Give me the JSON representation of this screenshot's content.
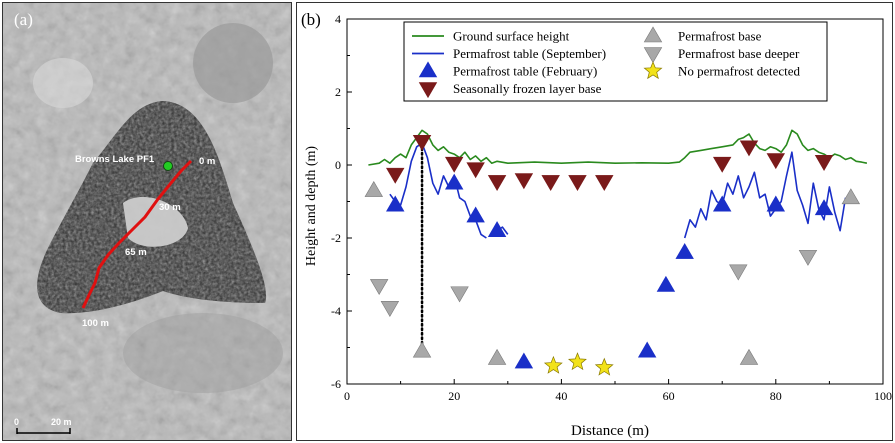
{
  "panel_a": {
    "label": "(a)",
    "site_label": "Browns Lake PF1",
    "distance_marks": [
      "0 m",
      "30 m",
      "65 m",
      "100 m"
    ],
    "scale_bar": {
      "zero": "0",
      "length": "20 m"
    },
    "colors": {
      "transect": "#e01010",
      "site": "#22cc22"
    }
  },
  "chart_data": {
    "type": "line",
    "panel_label": "(b)",
    "xlabel": "Distance (m)",
    "ylabel": "Height and depth (m)",
    "xlim": [
      0,
      100
    ],
    "ylim": [
      -6,
      4
    ],
    "xticks": [
      0,
      20,
      40,
      60,
      80,
      100
    ],
    "yticks": [
      4,
      2,
      0,
      -2,
      -4,
      -6
    ],
    "grid": false,
    "legend_position": "top",
    "series": [
      {
        "name": "Ground surface height",
        "kind": "line",
        "color": "#2a8a1e",
        "segments": [
          [
            [
              4,
              0
            ],
            [
              6,
              0.05
            ],
            [
              7,
              0.15
            ],
            [
              8,
              0.05
            ],
            [
              9,
              0.2
            ],
            [
              10,
              0.3
            ],
            [
              11,
              0.2
            ],
            [
              12,
              0.55
            ],
            [
              13,
              0.75
            ],
            [
              14,
              0.95
            ],
            [
              15,
              0.85
            ],
            [
              16,
              0.55
            ],
            [
              17,
              0.4
            ],
            [
              18,
              0.5
            ],
            [
              19,
              0.35
            ],
            [
              20,
              0.3
            ],
            [
              21,
              0.2
            ],
            [
              22,
              0.35
            ],
            [
              23,
              0.15
            ],
            [
              24,
              0.25
            ],
            [
              25,
              0.1
            ],
            [
              26,
              0.2
            ],
            [
              27,
              0.05
            ],
            [
              28,
              0.1
            ],
            [
              30,
              0.05
            ],
            [
              35,
              0.08
            ],
            [
              40,
              0.05
            ],
            [
              45,
              0.08
            ],
            [
              50,
              0.05
            ],
            [
              55,
              0.06
            ],
            [
              60,
              0.05
            ],
            [
              62,
              0.08
            ],
            [
              63,
              0.2
            ],
            [
              64,
              0.35
            ],
            [
              66,
              0.4
            ],
            [
              68,
              0.45
            ],
            [
              70,
              0.5
            ],
            [
              72,
              0.55
            ],
            [
              73,
              0.7
            ],
            [
              74,
              0.75
            ],
            [
              75,
              0.85
            ],
            [
              76,
              0.6
            ],
            [
              77,
              0.45
            ],
            [
              78,
              0.4
            ],
            [
              79,
              0.5
            ],
            [
              80,
              0.45
            ],
            [
              81,
              0.35
            ],
            [
              82,
              0.55
            ],
            [
              83,
              0.95
            ],
            [
              84,
              0.85
            ],
            [
              85,
              0.55
            ],
            [
              86,
              0.4
            ],
            [
              87,
              0.45
            ],
            [
              88,
              0.35
            ],
            [
              89,
              0.3
            ],
            [
              90,
              0.2
            ],
            [
              91,
              0.3
            ],
            [
              92,
              0.25
            ],
            [
              93,
              0.15
            ],
            [
              94,
              0.2
            ],
            [
              95,
              0.1
            ],
            [
              96,
              0.08
            ],
            [
              97,
              0.05
            ]
          ]
        ]
      },
      {
        "name": "Permafrost table (September)",
        "kind": "line",
        "color": "#1a2fc8",
        "segments": [
          [
            [
              8,
              -0.8
            ],
            [
              9,
              -1.0
            ],
            [
              10,
              -1.1
            ],
            [
              11,
              -0.6
            ],
            [
              12,
              0.1
            ],
            [
              13,
              0.5
            ],
            [
              14,
              0.6
            ],
            [
              15,
              0.2
            ],
            [
              16,
              -0.5
            ],
            [
              17,
              -0.8
            ],
            [
              18,
              -0.3
            ],
            [
              19,
              -0.6
            ],
            [
              20,
              -0.3
            ],
            [
              21,
              -0.9
            ],
            [
              22,
              -1.0
            ],
            [
              23,
              -1.4
            ],
            [
              24,
              -1.5
            ],
            [
              25,
              -1.9
            ],
            [
              26,
              -2.0
            ]
          ],
          [
            [
              27,
              -1.9
            ],
            [
              28,
              -1.8
            ],
            [
              29,
              -1.7
            ],
            [
              30,
              -1.9
            ]
          ],
          [
            [
              63,
              -2.0
            ],
            [
              64,
              -1.5
            ],
            [
              65,
              -1.7
            ],
            [
              66,
              -1.2
            ],
            [
              67,
              -1.5
            ],
            [
              68,
              -0.7
            ],
            [
              69,
              -1.0
            ],
            [
              70,
              -1.1
            ],
            [
              71,
              -0.5
            ],
            [
              72,
              -0.8
            ],
            [
              73,
              -0.3
            ],
            [
              74,
              -0.9
            ],
            [
              75,
              -0.6
            ],
            [
              76,
              -0.2
            ],
            [
              77,
              -0.9
            ],
            [
              78,
              -0.8
            ],
            [
              79,
              -1.4
            ],
            [
              80,
              -1.2
            ],
            [
              81,
              -1.0
            ],
            [
              82,
              -0.3
            ],
            [
              83,
              0.35
            ],
            [
              84,
              -0.7
            ],
            [
              85,
              -1.1
            ],
            [
              86,
              -1.6
            ],
            [
              87,
              -0.5
            ],
            [
              88,
              -1.2
            ],
            [
              89,
              -1.5
            ],
            [
              90,
              -0.6
            ],
            [
              91,
              -1.3
            ],
            [
              92,
              -1.8
            ],
            [
              93,
              -0.9
            ]
          ]
        ]
      },
      {
        "name": "Permafrost table (February)",
        "kind": "marker",
        "marker": "triangle-up",
        "color": "#1a2fc8",
        "points": [
          [
            9,
            -1.1
          ],
          [
            20,
            -0.5
          ],
          [
            24,
            -1.4
          ],
          [
            28,
            -1.8
          ],
          [
            33,
            -5.4
          ],
          [
            56,
            -5.1
          ],
          [
            59.5,
            -3.3
          ],
          [
            63,
            -2.4
          ],
          [
            70,
            -1.1
          ],
          [
            80,
            -1.1
          ],
          [
            89,
            -1.2
          ]
        ]
      },
      {
        "name": "Seasonally frozen layer base",
        "kind": "marker",
        "marker": "triangle-down",
        "color": "#7a1a1a",
        "points": [
          [
            9,
            -0.25
          ],
          [
            14,
            0.65
          ],
          [
            20,
            0.05
          ],
          [
            24,
            -0.1
          ],
          [
            28,
            -0.45
          ],
          [
            33,
            -0.4
          ],
          [
            38,
            -0.45
          ],
          [
            43,
            -0.45
          ],
          [
            48,
            -0.45
          ],
          [
            70,
            0.05
          ],
          [
            75,
            0.5
          ],
          [
            80,
            0.15
          ],
          [
            89,
            0.1
          ]
        ]
      },
      {
        "name": "Permafrost base",
        "kind": "marker",
        "marker": "triangle-up",
        "color": "#a8a8a8",
        "points": [
          [
            5,
            -0.7
          ],
          [
            14,
            -5.1
          ],
          [
            28,
            -5.3
          ],
          [
            75,
            -5.3
          ],
          [
            94,
            -0.9
          ]
        ]
      },
      {
        "name": "Permafrost base deeper",
        "kind": "marker",
        "marker": "triangle-down",
        "color": "#a8a8a8",
        "points": [
          [
            6,
            -3.3
          ],
          [
            8,
            -3.9
          ],
          [
            21,
            -3.5
          ],
          [
            73,
            -2.9
          ],
          [
            86,
            -2.5
          ]
        ]
      },
      {
        "name": "No permafrost detected",
        "kind": "marker",
        "marker": "star",
        "color": "#f2e21a",
        "points": [
          [
            38.5,
            -5.5
          ],
          [
            43,
            -5.4
          ],
          [
            48,
            -5.55
          ]
        ]
      }
    ],
    "annotations": [
      {
        "kind": "dotted-line",
        "x": 14,
        "y_from": 0.7,
        "y_to": -5.0,
        "color": "#000000"
      }
    ]
  }
}
